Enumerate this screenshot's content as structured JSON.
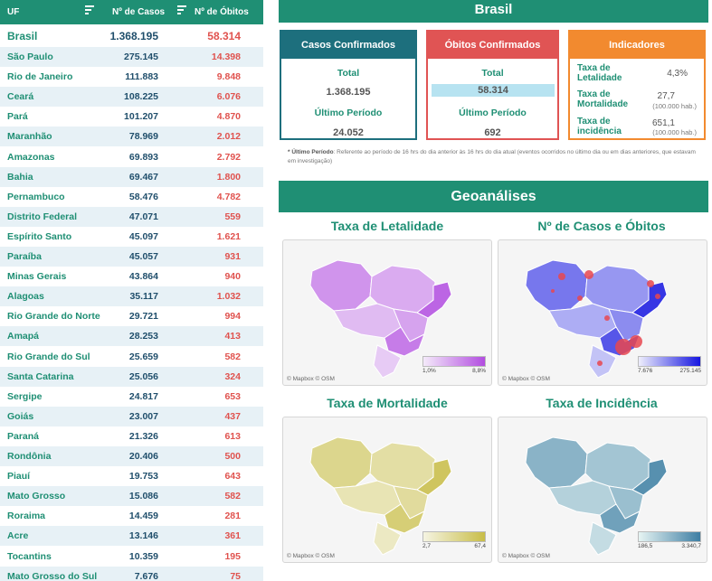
{
  "table": {
    "headers": {
      "uf": "UF",
      "cases": "Nº de Casos",
      "deaths": "Nº de Óbitos"
    },
    "rows": [
      {
        "uf": "Brasil",
        "cases": "1.368.195",
        "deaths": "58.314"
      },
      {
        "uf": "São Paulo",
        "cases": "275.145",
        "deaths": "14.398"
      },
      {
        "uf": "Rio de Janeiro",
        "cases": "111.883",
        "deaths": "9.848"
      },
      {
        "uf": "Ceará",
        "cases": "108.225",
        "deaths": "6.076"
      },
      {
        "uf": "Pará",
        "cases": "101.207",
        "deaths": "4.870"
      },
      {
        "uf": "Maranhão",
        "cases": "78.969",
        "deaths": "2.012"
      },
      {
        "uf": "Amazonas",
        "cases": "69.893",
        "deaths": "2.792"
      },
      {
        "uf": "Bahia",
        "cases": "69.467",
        "deaths": "1.800"
      },
      {
        "uf": "Pernambuco",
        "cases": "58.476",
        "deaths": "4.782"
      },
      {
        "uf": "Distrito Federal",
        "cases": "47.071",
        "deaths": "559"
      },
      {
        "uf": "Espírito Santo",
        "cases": "45.097",
        "deaths": "1.621"
      },
      {
        "uf": "Paraíba",
        "cases": "45.057",
        "deaths": "931"
      },
      {
        "uf": "Minas Gerais",
        "cases": "43.864",
        "deaths": "940"
      },
      {
        "uf": "Alagoas",
        "cases": "35.117",
        "deaths": "1.032"
      },
      {
        "uf": "Rio Grande do Norte",
        "cases": "29.721",
        "deaths": "994"
      },
      {
        "uf": "Amapá",
        "cases": "28.253",
        "deaths": "413"
      },
      {
        "uf": "Rio Grande do Sul",
        "cases": "25.659",
        "deaths": "582"
      },
      {
        "uf": "Santa Catarina",
        "cases": "25.056",
        "deaths": "324"
      },
      {
        "uf": "Sergipe",
        "cases": "24.817",
        "deaths": "653"
      },
      {
        "uf": "Goiás",
        "cases": "23.007",
        "deaths": "437"
      },
      {
        "uf": "Paraná",
        "cases": "21.326",
        "deaths": "613"
      },
      {
        "uf": "Rondônia",
        "cases": "20.406",
        "deaths": "500"
      },
      {
        "uf": "Piauí",
        "cases": "19.753",
        "deaths": "643"
      },
      {
        "uf": "Mato Grosso",
        "cases": "15.086",
        "deaths": "582"
      },
      {
        "uf": "Roraima",
        "cases": "14.459",
        "deaths": "281"
      },
      {
        "uf": "Acre",
        "cases": "13.146",
        "deaths": "361"
      },
      {
        "uf": "Tocantins",
        "cases": "10.359",
        "deaths": "195"
      },
      {
        "uf": "Mato Grosso do Sul",
        "cases": "7.676",
        "deaths": "75"
      }
    ]
  },
  "summary": {
    "title": "Brasil",
    "casos": {
      "header": "Casos Confirmados",
      "total_label": "Total",
      "total": "1.368.195",
      "period_label": "Último Período",
      "period": "24.052"
    },
    "obitos": {
      "header": "Óbitos Confirmados",
      "total_label": "Total",
      "total": "58.314",
      "period_label": "Último Período",
      "period": "692"
    },
    "indicadores": {
      "header": "Indicadores",
      "letalidade": {
        "label1": "Taxa de",
        "label2": "Letalidade",
        "value": "4,3%"
      },
      "mortalidade": {
        "label1": "Taxa de",
        "label2": "Mortalidade",
        "value": "27,7",
        "unit": "(100.000 hab.)"
      },
      "incidencia": {
        "label1": "Taxa de",
        "label2": "incidência",
        "value": "651,1",
        "unit": "(100.000 hab.)"
      }
    },
    "footnote_bold": "* Último Período",
    "footnote_text": ": Referente ao período de 16 hrs do dia anterior às 16 hrs do dia atual (eventos ocorridos no último dia ou em dias anteriores, que estavam em investigação)"
  },
  "geo": {
    "title": "Geoanálises",
    "attribution": "© Mapbox  © OSM",
    "maps": {
      "letalidade": {
        "title": "Taxa de Letalidade",
        "min": "1,0%",
        "max": "8,8%",
        "gradient": [
          "#f4eafa",
          "#b24de0"
        ]
      },
      "casos": {
        "title": "Nº de Casos e Óbitos",
        "min": "7.676",
        "max": "275.145",
        "gradient": [
          "#eeeefc",
          "#1515e0"
        ],
        "marker": "#e8474f"
      },
      "mortalidade": {
        "title": "Taxa de Mortalidade",
        "min": "2,7",
        "max": "67,4",
        "gradient": [
          "#f5f4e2",
          "#c8bd48"
        ]
      },
      "incidencia": {
        "title": "Taxa de Incidência",
        "min": "186,5",
        "max": "3.340,7",
        "gradient": [
          "#e6f4f3",
          "#3e7ea3"
        ]
      }
    }
  }
}
